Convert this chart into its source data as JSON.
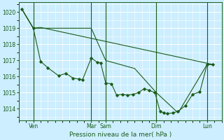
{
  "xlabel": "Pression niveau de la mer( hPa )",
  "bg_color": "#cceeff",
  "grid_color": "#ffffff",
  "line_color": "#1a5c1a",
  "ylim": [
    1013.3,
    1020.6
  ],
  "yticks": [
    1014,
    1015,
    1016,
    1017,
    1018,
    1019,
    1020
  ],
  "xlim": [
    0,
    280
  ],
  "xtick_positions": [
    20,
    100,
    120,
    190,
    260
  ],
  "xtick_labels": [
    "Ven",
    "Mar",
    "Sam",
    "Dim",
    "Lun"
  ],
  "vline_positions": [
    20,
    100,
    120,
    190,
    260
  ],
  "line1_x": [
    4,
    20,
    30,
    40,
    55,
    65,
    75,
    83,
    88,
    100,
    108,
    113,
    120,
    128,
    135,
    143,
    150,
    158,
    165,
    173,
    180,
    188,
    195,
    200,
    205,
    213,
    220,
    230,
    240,
    250,
    260,
    268
  ],
  "line1_y": [
    1020.2,
    1019.0,
    1016.95,
    1016.55,
    1016.05,
    1016.2,
    1015.9,
    1015.85,
    1015.8,
    1017.15,
    1016.9,
    1016.85,
    1015.6,
    1015.55,
    1014.85,
    1014.9,
    1014.85,
    1014.9,
    1015.0,
    1015.25,
    1015.15,
    1015.0,
    1013.85,
    1013.75,
    1013.7,
    1013.75,
    1013.85,
    1014.2,
    1014.9,
    1015.05,
    1016.75,
    1016.75
  ],
  "line2_x": [
    4,
    20,
    30,
    100,
    120,
    160,
    190,
    220,
    260,
    268
  ],
  "line2_y": [
    1020.2,
    1019.0,
    1019.0,
    1019.0,
    1017.0,
    1016.5,
    1015.0,
    1013.75,
    1016.75,
    1016.75
  ],
  "line3_x": [
    4,
    20,
    30,
    268
  ],
  "line3_y": [
    1020.2,
    1019.0,
    1019.05,
    1016.75
  ]
}
